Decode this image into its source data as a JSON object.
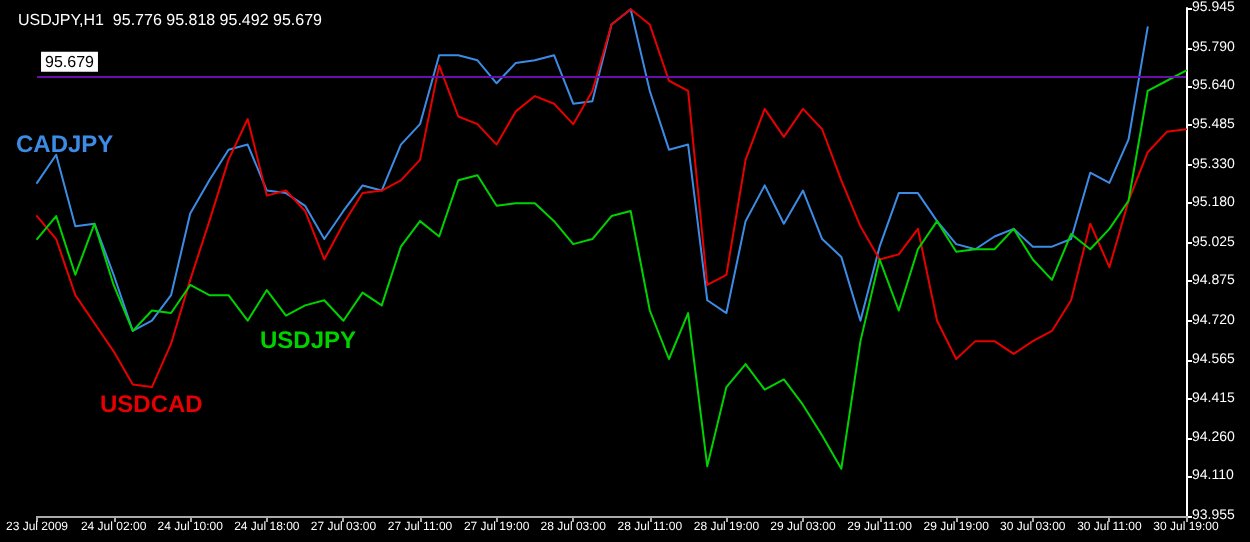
{
  "chart_data": {
    "type": "line",
    "title": "USDJPY,H1  95.776 95.818 95.492 95.679",
    "categories": [
      "23 Jul 2009",
      null,
      null,
      null,
      "24 Jul 02:00",
      null,
      null,
      null,
      "24 Jul 10:00",
      null,
      null,
      null,
      "24 Jul 18:00",
      null,
      null,
      null,
      "27 Jul 03:00",
      null,
      null,
      null,
      "27 Jul 11:00",
      null,
      null,
      null,
      "27 Jul 19:00",
      null,
      null,
      null,
      "28 Jul 03:00",
      null,
      null,
      null,
      "28 Jul 11:00",
      null,
      null,
      null,
      "28 Jul 19:00",
      null,
      null,
      null,
      "29 Jul 03:00",
      null,
      null,
      null,
      "29 Jul 11:00",
      null,
      null,
      null,
      "29 Jul 19:00",
      null,
      null,
      null,
      "30 Jul 03:00",
      null,
      null,
      null,
      "30 Jul 11:00",
      null,
      null,
      null,
      "30 Jul 19:00"
    ],
    "series": [
      {
        "name": "CADJPY",
        "color": "#3c8ce6",
        "values": [
          95.26,
          95.37,
          95.09,
          95.1,
          94.9,
          94.68,
          94.72,
          94.82,
          95.14,
          95.27,
          95.39,
          95.41,
          95.23,
          95.22,
          95.17,
          95.04,
          95.15,
          95.25,
          95.23,
          95.41,
          95.49,
          95.76,
          95.76,
          95.74,
          95.65,
          95.73,
          95.74,
          95.76,
          95.57,
          95.58,
          95.88,
          95.94,
          95.62,
          95.39,
          95.41,
          94.8,
          94.75,
          95.11,
          95.25,
          95.1,
          95.23,
          95.04,
          94.97,
          94.72,
          95.01,
          95.22,
          95.22,
          95.11,
          95.02,
          95.0,
          95.05,
          95.08,
          95.01,
          95.01,
          95.04,
          95.3,
          95.26,
          95.43,
          95.87,
          null,
          null
        ]
      },
      {
        "name": "USDCAD",
        "color": "#e60000",
        "values": [
          95.13,
          95.04,
          94.82,
          94.71,
          94.6,
          94.47,
          94.46,
          94.63,
          94.88,
          95.11,
          95.35,
          95.51,
          95.21,
          95.23,
          95.15,
          94.96,
          95.1,
          95.22,
          95.23,
          95.27,
          95.35,
          95.72,
          95.52,
          95.49,
          95.41,
          95.54,
          95.6,
          95.57,
          95.49,
          95.62,
          95.88,
          95.94,
          95.88,
          95.66,
          95.62,
          94.86,
          94.9,
          95.35,
          95.55,
          95.44,
          95.55,
          95.47,
          95.27,
          95.09,
          94.96,
          94.98,
          95.08,
          94.72,
          94.57,
          94.64,
          94.64,
          94.59,
          94.64,
          94.68,
          94.8,
          95.1,
          94.93,
          95.19,
          95.38,
          95.46,
          95.47
        ]
      },
      {
        "name": "USDJPY",
        "color": "#00d200",
        "values": [
          95.04,
          95.13,
          94.9,
          95.1,
          94.86,
          94.68,
          94.76,
          94.75,
          94.86,
          94.82,
          94.82,
          94.72,
          94.84,
          94.74,
          94.78,
          94.8,
          94.72,
          94.83,
          94.78,
          95.01,
          95.11,
          95.05,
          95.27,
          95.29,
          95.17,
          95.18,
          95.18,
          95.11,
          95.02,
          95.04,
          95.13,
          95.15,
          94.76,
          94.57,
          94.75,
          94.15,
          94.46,
          94.55,
          94.45,
          94.49,
          94.39,
          94.27,
          94.14,
          94.64,
          94.96,
          94.76,
          95.0,
          95.11,
          94.99,
          95.0,
          95.0,
          95.08,
          94.96,
          94.88,
          95.06,
          95.0,
          95.08,
          95.19,
          95.62,
          95.66,
          95.7
        ]
      }
    ],
    "ylim": [
      93.955,
      95.945
    ],
    "yticks": [
      93.955,
      {
        "value": 94.11,
        "label": "94.110"
      },
      {
        "value": 94.26,
        "label": "94.260"
      },
      94.415,
      94.565,
      {
        "value": 94.72,
        "label": "94.720"
      },
      94.875,
      95.025,
      {
        "value": 95.18,
        "label": "95.180"
      },
      {
        "value": 95.33,
        "label": "95.330"
      },
      95.485,
      {
        "value": 95.64,
        "label": "95.640"
      },
      {
        "value": 95.79,
        "label": "95.790"
      },
      95.945
    ],
    "ref_lines": [
      {
        "axis": "y",
        "value": 95.679,
        "label": "95.679",
        "color": "#6a0dad"
      }
    ],
    "legend": false,
    "grid": false,
    "marker": "none",
    "line_style": "solid"
  }
}
